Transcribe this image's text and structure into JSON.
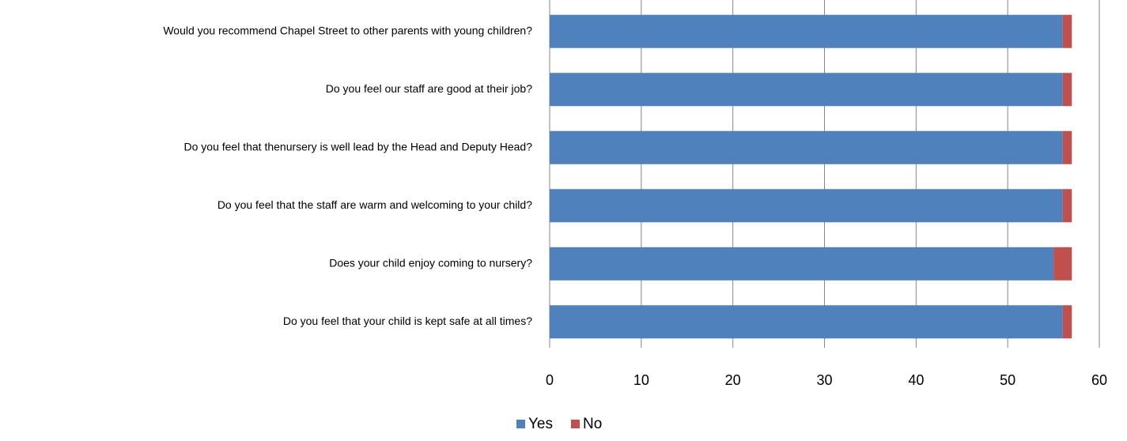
{
  "chart_data": {
    "type": "stacked-barh",
    "categories": [
      "Would you recommend Chapel Street to other parents with young children?",
      "Do you feel our staff are good at their job?",
      "Do you feel that thenursery  is well lead by the Head and Deputy Head?",
      "Do you feel that the staff are warm and welcoming to your child?",
      "Does your child enjoy coming to nursery?",
      "Do you feel that your child is kept safe at all times?"
    ],
    "series": [
      {
        "name": "Yes",
        "color": "#4f81bd",
        "values": [
          56,
          56,
          56,
          56,
          55,
          56
        ]
      },
      {
        "name": "No",
        "color": "#c0504d",
        "values": [
          1,
          1,
          1,
          1,
          2,
          1
        ]
      }
    ],
    "xlim": [
      0,
      60
    ],
    "xticks": [
      0,
      10,
      20,
      30,
      40,
      50,
      60
    ],
    "grid": true,
    "legend": "bottom"
  }
}
